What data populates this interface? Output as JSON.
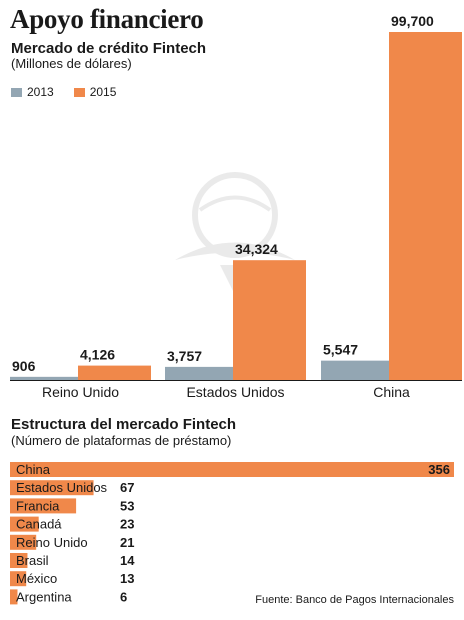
{
  "title": "Apoyo financiero",
  "chart_data": [
    {
      "type": "bar",
      "subtitle": "Mercado de crédito Fintech",
      "note": "(Millones de dólares)",
      "categories": [
        "Reino Unido",
        "Estados Unidos",
        "China"
      ],
      "series": [
        {
          "name": "2013",
          "color": "#93a6b3",
          "values": [
            906,
            3757,
            5547
          ],
          "labels": [
            "906",
            "3,757",
            "5,547"
          ]
        },
        {
          "name": "2015",
          "color": "#f0884a",
          "values": [
            4126,
            34324,
            99700
          ],
          "labels": [
            "4,126",
            "34,324",
            "99,700"
          ]
        }
      ],
      "ylim": [
        0,
        99700
      ],
      "grid": false,
      "legend_position": "top-left"
    },
    {
      "type": "bar",
      "orientation": "horizontal",
      "subtitle": "Estructura del mercado Fintech",
      "note": "(Número de plataformas de préstamo)",
      "categories": [
        "China",
        "Estados Unidos",
        "Francia",
        "Canadá",
        "Reino Unido",
        "Brasil",
        "México",
        "Argentina"
      ],
      "values": [
        356,
        67,
        53,
        23,
        21,
        14,
        13,
        6
      ],
      "color": "#f0884a",
      "xlim": [
        0,
        356
      ]
    }
  ],
  "source": "Fuente: Banco de Pagos Internacionales"
}
